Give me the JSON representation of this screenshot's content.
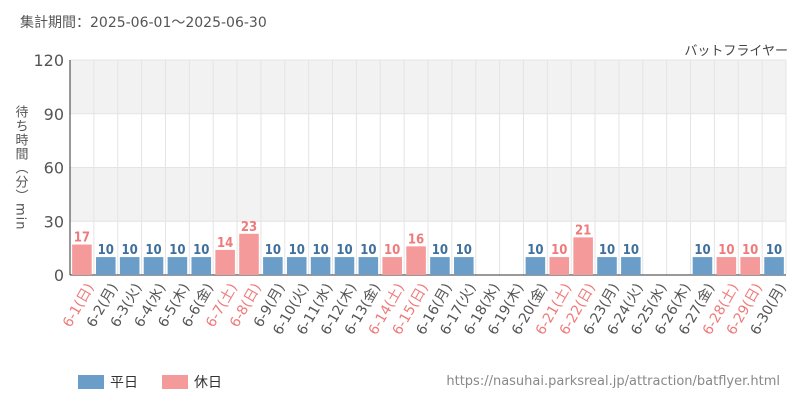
{
  "period_label": "集計期間：2025-06-01～2025-06-30",
  "attraction_name": "バットフライヤー",
  "source_url": "https://nasuhai.parksreal.jp/attraction/batflyer.html",
  "legend": [
    {
      "label": "平日",
      "color": "#6a9ec9"
    },
    {
      "label": "休日",
      "color": "#f59a9a"
    }
  ],
  "colors": {
    "weekday_bar": "#6a9ec9",
    "holiday_bar": "#f59a9a",
    "weekday_text": "#3f6f9c",
    "holiday_text": "#ef7a7a",
    "tick_text": "#555555",
    "band": "#f2f2f2",
    "grid": "#e4e4e4"
  },
  "chart_data": {
    "type": "bar",
    "ylabel": "待ち時間（分）min",
    "ylim": [
      0,
      120
    ],
    "yticks": [
      0,
      30,
      60,
      90,
      120
    ],
    "grid": true,
    "legend_position": "bottom-left",
    "categories": [
      "6-1(日)",
      "6-2(月)",
      "6-3(火)",
      "6-4(水)",
      "6-5(木)",
      "6-6(金)",
      "6-7(土)",
      "6-8(日)",
      "6-9(月)",
      "6-10(火)",
      "6-11(水)",
      "6-12(木)",
      "6-13(金)",
      "6-14(土)",
      "6-15(日)",
      "6-16(月)",
      "6-17(火)",
      "6-18(水)",
      "6-19(木)",
      "6-20(金)",
      "6-21(土)",
      "6-22(日)",
      "6-23(月)",
      "6-24(火)",
      "6-25(水)",
      "6-26(木)",
      "6-27(金)",
      "6-28(土)",
      "6-29(日)",
      "6-30(月)"
    ],
    "values": [
      17,
      10,
      10,
      10,
      10,
      10,
      14,
      23,
      10,
      10,
      10,
      10,
      10,
      10,
      16,
      10,
      10,
      null,
      null,
      10,
      10,
      21,
      10,
      10,
      null,
      null,
      10,
      10,
      10,
      10
    ],
    "day_type": [
      "休日",
      "平日",
      "平日",
      "平日",
      "平日",
      "平日",
      "休日",
      "休日",
      "平日",
      "平日",
      "平日",
      "平日",
      "平日",
      "休日",
      "休日",
      "平日",
      "平日",
      "平日",
      "平日",
      "平日",
      "休日",
      "休日",
      "平日",
      "平日",
      "平日",
      "平日",
      "平日",
      "休日",
      "休日",
      "平日"
    ]
  }
}
